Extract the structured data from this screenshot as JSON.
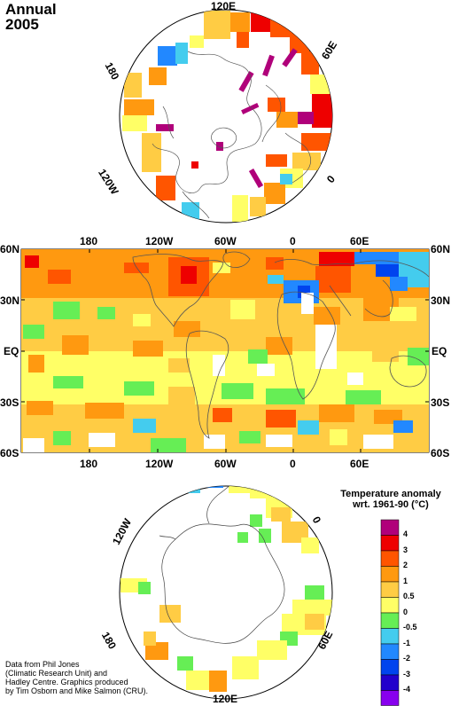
{
  "title": {
    "line1": "Annual",
    "line2": "2005"
  },
  "north_polar": {
    "labels": {
      "top": "120E",
      "upper_left": "180",
      "upper_right": "60E",
      "right": "0",
      "left": "120W"
    }
  },
  "world_map": {
    "lat_labels": [
      "60N",
      "30N",
      "EQ",
      "30S",
      "60S"
    ],
    "lon_labels": [
      "180",
      "120W",
      "60W",
      "0",
      "60E"
    ]
  },
  "south_polar": {
    "labels": {
      "upper_left": "120W",
      "right": "0",
      "lower_left": "180",
      "lower_right": "60E",
      "bottom": "120E"
    }
  },
  "legend": {
    "title_line1": "Temperature anomaly",
    "title_line2": "wrt. 1961-90  (°C)",
    "labels": [
      "4",
      "3",
      "2",
      "1",
      "0.5",
      "0",
      "-0.5",
      "-1",
      "-2",
      "-3",
      "-4"
    ],
    "colors": [
      "#b0007a",
      "#ee0000",
      "#ff5500",
      "#ff9910",
      "#ffcc44",
      "#ffff66",
      "#66ee55",
      "#44ccee",
      "#2288ff",
      "#0044ee",
      "#2200cc",
      "#8800ee"
    ]
  },
  "credit": [
    "Data from Phil Jones",
    "(Climatic Research Unit) and",
    "Hadley Centre.  Graphics produced",
    "by Tim Osborn and Mike Salmon (CRU)."
  ]
}
